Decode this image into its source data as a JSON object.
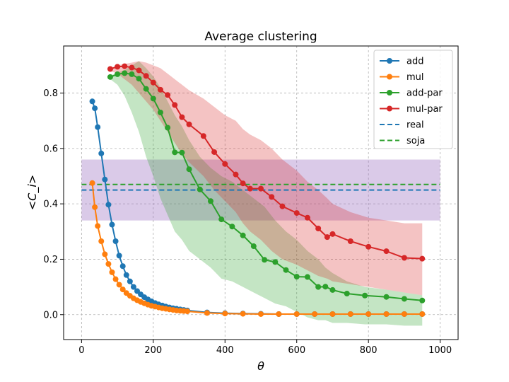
{
  "chart_data": {
    "type": "line",
    "title": "Average clustering",
    "xlabel": "θ",
    "ylabel": "<C_i>",
    "xlim": [
      -50,
      1050
    ],
    "ylim": [
      -0.09,
      0.97
    ],
    "xticks": [
      0,
      200,
      400,
      600,
      800,
      1000
    ],
    "yticks": [
      0.0,
      0.2,
      0.4,
      0.6,
      0.8
    ],
    "xtick_labels": [
      "0",
      "200",
      "400",
      "600",
      "800",
      "1000"
    ],
    "ytick_labels": [
      "0.0",
      "0.2",
      "0.4",
      "0.6",
      "0.8"
    ],
    "grid": true,
    "legend_position": "top-right",
    "series": [
      {
        "name": "add",
        "color": "#1f77b4",
        "style": "line-marker",
        "x": [
          30,
          37,
          45,
          55,
          65,
          75,
          85,
          95,
          105,
          115,
          125,
          135,
          145,
          155,
          165,
          175,
          185,
          195,
          205,
          215,
          225,
          235,
          245,
          255,
          265,
          275,
          285,
          295,
          350,
          400,
          450,
          500,
          550,
          600,
          650,
          700,
          750,
          800,
          850,
          900,
          950
        ],
        "y": [
          0.77,
          0.745,
          0.677,
          0.582,
          0.488,
          0.397,
          0.325,
          0.265,
          0.213,
          0.175,
          0.143,
          0.12,
          0.1,
          0.085,
          0.073,
          0.063,
          0.055,
          0.048,
          0.042,
          0.037,
          0.033,
          0.029,
          0.026,
          0.023,
          0.021,
          0.019,
          0.017,
          0.015,
          0.008,
          0.005,
          0.004,
          0.003,
          0.002,
          0.002,
          0.002,
          0.002,
          0.002,
          0.002,
          0.002,
          0.002,
          0.002
        ]
      },
      {
        "name": "mul",
        "color": "#ff7f0e",
        "style": "line-marker",
        "x": [
          30,
          37,
          45,
          55,
          65,
          75,
          85,
          95,
          105,
          115,
          125,
          135,
          145,
          155,
          165,
          175,
          185,
          195,
          205,
          215,
          225,
          235,
          245,
          255,
          265,
          275,
          285,
          295,
          350,
          400,
          450,
          500,
          550,
          600,
          650,
          700,
          750,
          800,
          850,
          900,
          950
        ],
        "y": [
          0.475,
          0.388,
          0.32,
          0.265,
          0.218,
          0.183,
          0.153,
          0.128,
          0.108,
          0.091,
          0.078,
          0.068,
          0.059,
          0.052,
          0.046,
          0.041,
          0.036,
          0.032,
          0.029,
          0.026,
          0.023,
          0.021,
          0.019,
          0.017,
          0.015,
          0.014,
          0.013,
          0.012,
          0.006,
          0.004,
          0.003,
          0.002,
          0.002,
          0.002,
          0.002,
          0.002,
          0.002,
          0.002,
          0.002,
          0.002,
          0.002
        ]
      },
      {
        "name": "add-par",
        "color": "#2ca02c",
        "style": "line-marker",
        "x": [
          80,
          100,
          120,
          140,
          160,
          180,
          200,
          220,
          240,
          260,
          280,
          300,
          330,
          360,
          390,
          420,
          450,
          480,
          510,
          540,
          570,
          600,
          630,
          660,
          680,
          700,
          740,
          790,
          850,
          900,
          950
        ],
        "y": [
          0.858,
          0.868,
          0.872,
          0.868,
          0.852,
          0.815,
          0.78,
          0.73,
          0.675,
          0.586,
          0.585,
          0.525,
          0.452,
          0.41,
          0.344,
          0.318,
          0.286,
          0.247,
          0.198,
          0.19,
          0.161,
          0.137,
          0.136,
          0.1,
          0.101,
          0.089,
          0.076,
          0.069,
          0.064,
          0.057,
          0.051
        ],
        "band_upper": [
          0.862,
          0.875,
          0.882,
          0.9,
          0.915,
          0.89,
          0.86,
          0.82,
          0.77,
          0.72,
          0.68,
          0.63,
          0.57,
          0.53,
          0.5,
          0.48,
          0.45,
          0.42,
          0.39,
          0.34,
          0.3,
          0.27,
          0.23,
          0.2,
          0.17,
          0.15,
          0.12,
          0.1,
          0.09,
          0.08,
          0.07
        ],
        "band_lower": [
          0.85,
          0.83,
          0.79,
          0.73,
          0.66,
          0.57,
          0.5,
          0.42,
          0.36,
          0.3,
          0.27,
          0.23,
          0.2,
          0.17,
          0.13,
          0.12,
          0.1,
          0.08,
          0.06,
          0.04,
          0.03,
          0.01,
          -0.01,
          -0.02,
          -0.02,
          -0.03,
          -0.03,
          -0.035,
          -0.035,
          -0.04,
          -0.04
        ]
      },
      {
        "name": "mul-par",
        "color": "#d62728",
        "style": "line-marker",
        "x": [
          80,
          100,
          120,
          140,
          160,
          180,
          200,
          220,
          240,
          260,
          280,
          300,
          340,
          370,
          400,
          430,
          450,
          470,
          500,
          530,
          560,
          600,
          630,
          660,
          685,
          700,
          750,
          800,
          850,
          900,
          950
        ],
        "y": [
          0.887,
          0.895,
          0.897,
          0.892,
          0.882,
          0.862,
          0.838,
          0.812,
          0.793,
          0.757,
          0.713,
          0.687,
          0.645,
          0.587,
          0.544,
          0.506,
          0.474,
          0.455,
          0.455,
          0.425,
          0.391,
          0.367,
          0.35,
          0.311,
          0.28,
          0.291,
          0.265,
          0.245,
          0.229,
          0.205,
          0.202
        ],
        "band_upper": [
          0.89,
          0.9,
          0.905,
          0.91,
          0.915,
          0.91,
          0.9,
          0.89,
          0.87,
          0.85,
          0.83,
          0.81,
          0.78,
          0.75,
          0.72,
          0.7,
          0.67,
          0.65,
          0.63,
          0.6,
          0.56,
          0.52,
          0.48,
          0.45,
          0.42,
          0.4,
          0.37,
          0.35,
          0.34,
          0.33,
          0.33
        ],
        "band_lower": [
          0.88,
          0.87,
          0.85,
          0.83,
          0.8,
          0.77,
          0.74,
          0.7,
          0.66,
          0.62,
          0.58,
          0.55,
          0.5,
          0.45,
          0.41,
          0.37,
          0.33,
          0.3,
          0.27,
          0.23,
          0.2,
          0.18,
          0.16,
          0.14,
          0.13,
          0.12,
          0.11,
          0.1,
          0.09,
          0.08,
          0.07
        ]
      },
      {
        "name": "real",
        "color": "#1f77b4",
        "style": "hline",
        "y": 0.45,
        "x_range": [
          0,
          1000
        ]
      },
      {
        "name": "soja",
        "color": "#2ca02c",
        "style": "hline",
        "y": 0.47,
        "x_range": [
          0,
          1000
        ]
      }
    ],
    "shaded_region": {
      "color": "#9467bd",
      "y_range": [
        0.34,
        0.56
      ],
      "x_range": [
        0,
        1000
      ]
    }
  }
}
